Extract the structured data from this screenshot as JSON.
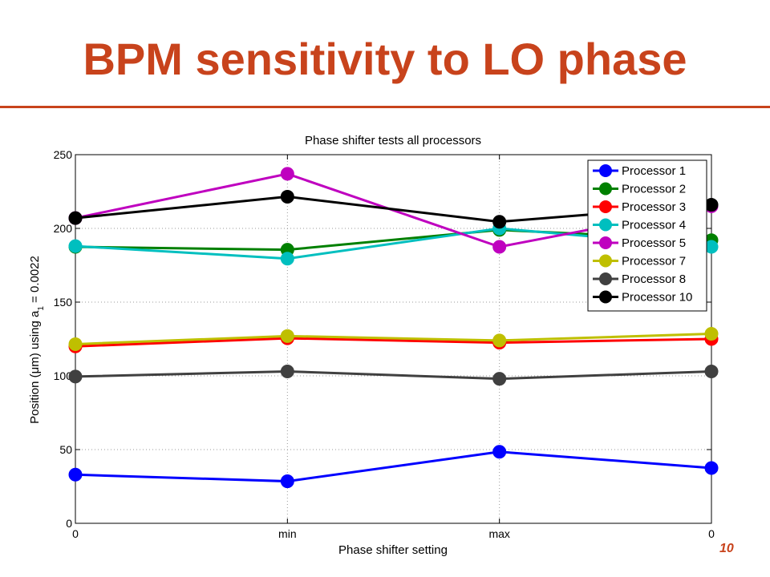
{
  "slide": {
    "title": "BPM sensitivity to LO phase",
    "page_number": "10",
    "accent_color": "#C8431C"
  },
  "chart_data": {
    "type": "line",
    "title": "Phase shifter tests all processors",
    "xlabel": "Phase shifter setting",
    "ylabel": "Position (μm) using a",
    "ylabel_subscript": "1",
    "ylabel_suffix": " = 0.0022",
    "categories": [
      "0",
      "min",
      "max",
      "0"
    ],
    "ylim": [
      0,
      250
    ],
    "yticks": [
      "0",
      "50",
      "100",
      "150",
      "200",
      "250"
    ],
    "grid": true,
    "legend_position": "top-right",
    "series": [
      {
        "name": "Processor 1",
        "color": "#0000FF",
        "values": [
          33,
          28.5,
          48.5,
          37.5
        ]
      },
      {
        "name": "Processor 2",
        "color": "#008000",
        "values": [
          187.5,
          185.5,
          199,
          192
        ]
      },
      {
        "name": "Processor 3",
        "color": "#FF0000",
        "values": [
          120,
          125.5,
          122.5,
          125
        ]
      },
      {
        "name": "Processor 4",
        "color": "#00BFBF",
        "values": [
          188,
          179.5,
          200,
          187.5
        ]
      },
      {
        "name": "Processor 5",
        "color": "#BF00BF",
        "values": [
          207,
          237,
          187.5,
          215
        ]
      },
      {
        "name": "Processor 7",
        "color": "#BFBF00",
        "values": [
          121.5,
          127,
          124,
          128.5
        ]
      },
      {
        "name": "Processor 8",
        "color": "#404040",
        "values": [
          99.5,
          103,
          98,
          103
        ]
      },
      {
        "name": "Processor 10",
        "color": "#000000",
        "values": [
          207,
          221.5,
          204.5,
          216
        ]
      }
    ]
  }
}
